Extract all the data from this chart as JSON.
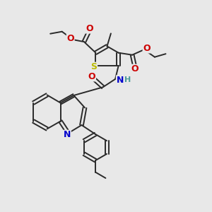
{
  "bg_color": "#e8e8e8",
  "bond_color": "#2a2a2a",
  "bond_width": 1.4,
  "atom_colors": {
    "S": "#bbbb00",
    "N": "#0000cc",
    "O": "#cc0000",
    "H": "#4a9a9a",
    "C": "#2a2a2a"
  },
  "figsize": [
    3.0,
    3.0
  ],
  "dpi": 100,
  "xlim": [
    0,
    10
  ],
  "ylim": [
    0,
    10
  ]
}
